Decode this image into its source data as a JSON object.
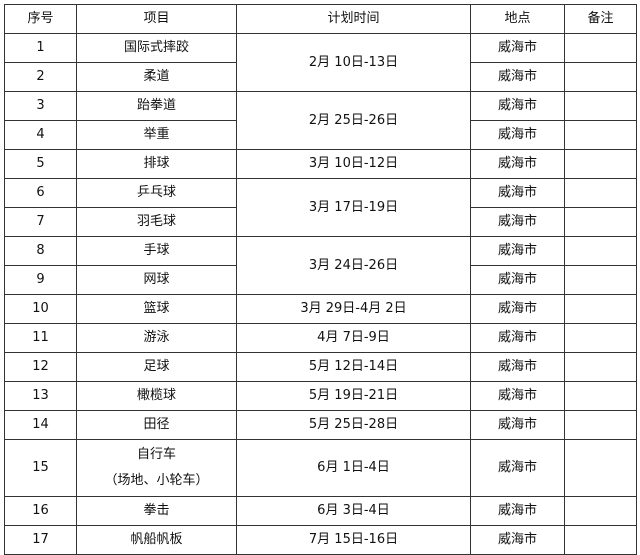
{
  "headers": [
    "序号",
    "项目",
    "计划时间",
    "地点",
    "备注"
  ],
  "rows": [
    {
      "no": "1",
      "item": "国际式摔跤",
      "time": "2月 10日-13日",
      "place": "威海市"
    },
    {
      "no": "2",
      "item": "柔道",
      "place": "威海市"
    },
    {
      "no": "3",
      "item": "跆拳道",
      "time": "2月 25日-26日",
      "place": "威海市"
    },
    {
      "no": "4",
      "item": "举重",
      "place": "威海市"
    },
    {
      "no": "5",
      "item": "排球",
      "time": "3月 10日-12日",
      "place": "威海市"
    },
    {
      "no": "6",
      "item": "乒乓球",
      "time": "3月 17日-19日",
      "place": "威海市"
    },
    {
      "no": "7",
      "item": "羽毛球",
      "place": "威海市"
    },
    {
      "no": "8",
      "item": "手球",
      "time": "3月 24日-26日",
      "place": "威海市"
    },
    {
      "no": "9",
      "item": "网球",
      "place": "威海市"
    },
    {
      "no": "10",
      "item": "篮球",
      "time": "3月 29日-4月 2日",
      "place": "威海市"
    },
    {
      "no": "11",
      "item": "游泳",
      "time": "4月 7日-9日",
      "place": "威海市"
    },
    {
      "no": "12",
      "item": "足球",
      "time": "5月 12日-14日",
      "place": "威海市"
    },
    {
      "no": "13",
      "item": "橄榄球",
      "time": "5月 19日-21日",
      "place": "威海市"
    },
    {
      "no": "14",
      "item": "田径",
      "time": "5月 25日-28日",
      "place": "威海市"
    },
    {
      "no": "15",
      "item": "自行车",
      "item2": "（场地、小轮车）",
      "time": "6月 1日-4日",
      "place": "威海市"
    },
    {
      "no": "16",
      "item": "拳击",
      "time": "6月 3日-4日",
      "place": "威海市"
    },
    {
      "no": "17",
      "item": "帆船帆板",
      "time": "7月 15日-16日",
      "place": "威海市"
    }
  ]
}
